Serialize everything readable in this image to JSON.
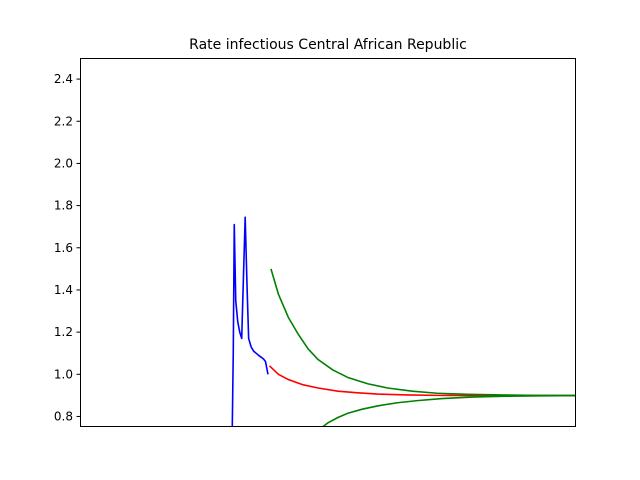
{
  "chart_data": {
    "type": "line",
    "title": "Rate infectious Central African Republic",
    "xlabel": "",
    "ylabel": "",
    "ylim": [
      0.75,
      2.5
    ],
    "xlim": [
      0,
      100
    ],
    "x_ticks_shown": false,
    "yticks": [
      0.8,
      1.0,
      1.2,
      1.4,
      1.6,
      1.8,
      2.0,
      2.2,
      2.4
    ],
    "ytick_labels": [
      "0.8",
      "1.0",
      "1.2",
      "1.4",
      "1.6",
      "1.8",
      "2.0",
      "2.2",
      "2.4"
    ],
    "grid": false,
    "legend": "none",
    "series": [
      {
        "color": "#0000ff",
        "points": [
          [
            30.7,
            0.75
          ],
          [
            30.9,
            1.1
          ],
          [
            31.1,
            1.71
          ],
          [
            31.4,
            1.35
          ],
          [
            31.8,
            1.25
          ],
          [
            32.2,
            1.2
          ],
          [
            32.6,
            1.17
          ],
          [
            33.0,
            1.5
          ],
          [
            33.3,
            1.745
          ],
          [
            33.7,
            1.4
          ],
          [
            34.0,
            1.17
          ],
          [
            34.5,
            1.13
          ],
          [
            35.0,
            1.11
          ],
          [
            35.5,
            1.1
          ],
          [
            36.0,
            1.09
          ],
          [
            36.6,
            1.08
          ],
          [
            37.1,
            1.07
          ],
          [
            37.4,
            1.06
          ],
          [
            37.9,
            1.0
          ]
        ]
      },
      {
        "color": "#ff0000",
        "points": [
          [
            38.2,
            1.04
          ],
          [
            40,
            1.0
          ],
          [
            42,
            0.975
          ],
          [
            45,
            0.95
          ],
          [
            48,
            0.935
          ],
          [
            52,
            0.92
          ],
          [
            56,
            0.912
          ],
          [
            60,
            0.906
          ],
          [
            66,
            0.902
          ],
          [
            72,
            0.9
          ],
          [
            80,
            0.899
          ],
          [
            90,
            0.899
          ],
          [
            100,
            0.899
          ]
        ]
      },
      {
        "color": "#008000",
        "points": [
          [
            38.5,
            1.5
          ],
          [
            40,
            1.38
          ],
          [
            42,
            1.27
          ],
          [
            44,
            1.19
          ],
          [
            46,
            1.12
          ],
          [
            48,
            1.07
          ],
          [
            51,
            1.02
          ],
          [
            54,
            0.985
          ],
          [
            58,
            0.955
          ],
          [
            62,
            0.935
          ],
          [
            67,
            0.92
          ],
          [
            72,
            0.91
          ],
          [
            78,
            0.905
          ],
          [
            85,
            0.902
          ],
          [
            92,
            0.9
          ],
          [
            100,
            0.899
          ]
        ]
      },
      {
        "color": "#008000",
        "points": [
          [
            48.9,
            0.75
          ],
          [
            50,
            0.77
          ],
          [
            52,
            0.795
          ],
          [
            54,
            0.815
          ],
          [
            57,
            0.835
          ],
          [
            60,
            0.85
          ],
          [
            64,
            0.865
          ],
          [
            68,
            0.875
          ],
          [
            73,
            0.885
          ],
          [
            79,
            0.892
          ],
          [
            86,
            0.896
          ],
          [
            93,
            0.898
          ],
          [
            100,
            0.899
          ]
        ]
      }
    ]
  }
}
